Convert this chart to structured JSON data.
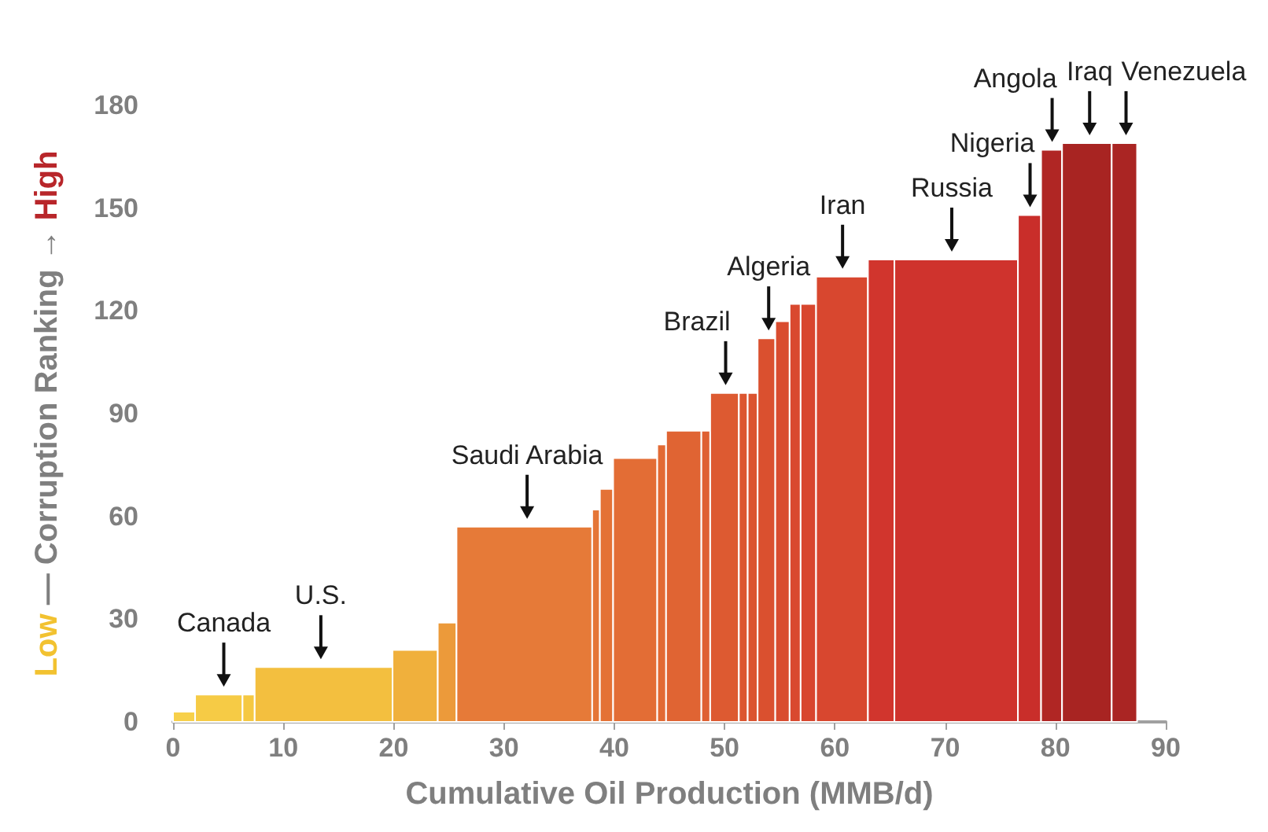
{
  "chart_data": {
    "type": "histogram",
    "xlabel": "Cumulative Oil Production (MMB/d)",
    "ylabel": "Low — Corruption Ranking → High",
    "bins": [
      0,
      2,
      6.3,
      7.4,
      19.9,
      24,
      25.7,
      38,
      38.7,
      39.9,
      43.9,
      44.7,
      47.9,
      48.7,
      51.3,
      52.1,
      53,
      54.6,
      55.9,
      56.9,
      58.3,
      63,
      65.4,
      76.6,
      78.7,
      80.6,
      85.1,
      87.4
    ],
    "values": [
      3,
      8,
      8,
      16,
      21,
      29,
      57,
      62,
      68,
      77,
      81,
      85,
      85,
      96,
      96,
      96,
      112,
      117,
      122,
      122,
      130,
      135,
      135,
      148,
      167,
      169,
      169
    ],
    "colors": [
      "#f7d04a",
      "#f6cb45",
      "#f5c842",
      "#f3bf3f",
      "#f0b03c",
      "#ec9a3a",
      "#e67a38",
      "#e57637",
      "#e47236",
      "#e36d35",
      "#e26a34",
      "#e06433",
      "#df6032",
      "#dd5a31",
      "#dc5630",
      "#db5430",
      "#da502f",
      "#d94c2f",
      "#d9492f",
      "#d8462e",
      "#d8472f",
      "#d1352d",
      "#cf332d",
      "#c92e2a",
      "#b02624",
      "#a82422",
      "#aa2523"
    ],
    "xlim": [
      0,
      90
    ],
    "xticks": [
      0,
      10,
      20,
      30,
      40,
      50,
      60,
      70,
      80,
      90
    ],
    "ylim": [
      0,
      180
    ],
    "yticks": [
      0,
      30,
      60,
      90,
      120,
      150,
      180
    ],
    "grid": false,
    "annotations": [
      {
        "text": "Canada",
        "x": 4.6,
        "y": 8
      },
      {
        "text": "U.S.",
        "x": 13.4,
        "y": 16
      },
      {
        "text": "Saudi Arabia",
        "x": 32.1,
        "y": 57
      },
      {
        "text": "Brazil",
        "x": 50.1,
        "y": 96
      },
      {
        "text": "Algeria",
        "x": 54,
        "y": 112
      },
      {
        "text": "Iran",
        "x": 60.7,
        "y": 130
      },
      {
        "text": "Russia",
        "x": 70.6,
        "y": 135
      },
      {
        "text": "Nigeria",
        "x": 77.7,
        "y": 148
      },
      {
        "text": "Angola",
        "x": 79.7,
        "y": 167
      },
      {
        "text": "Iraq",
        "x": 83.1,
        "y": 169
      },
      {
        "text": "Venezuela",
        "x": 86.4,
        "y": 169
      }
    ]
  }
}
